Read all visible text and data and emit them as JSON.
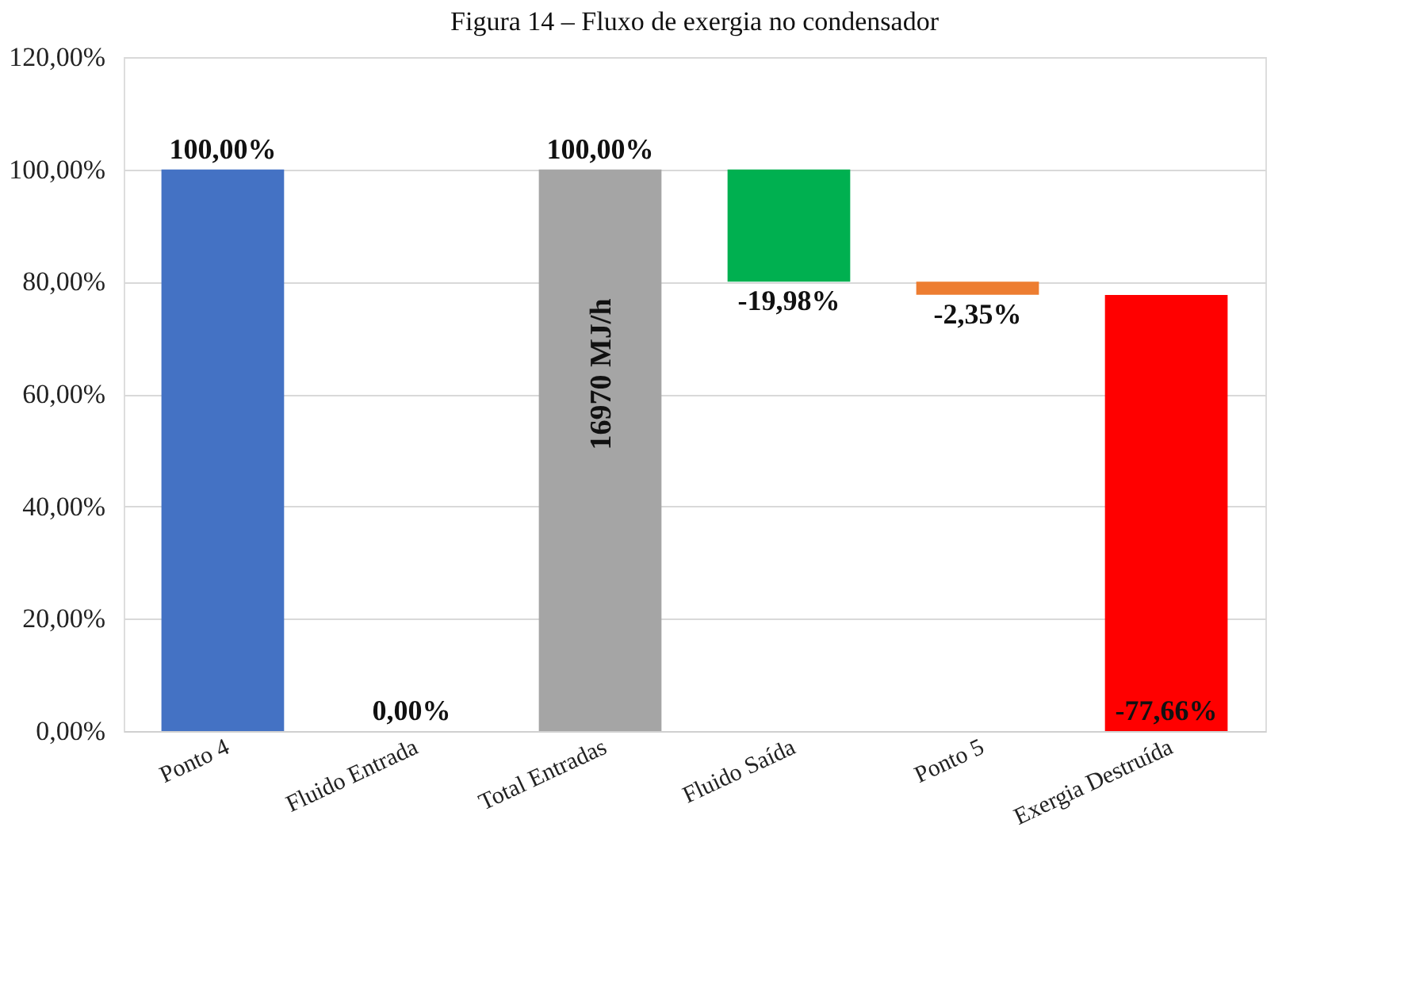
{
  "chart_data": {
    "type": "bar",
    "title": "Figura 14 – Fluxo de exergia no condensador",
    "categories": [
      "Ponto 4",
      "Fluido Entrada",
      "Total Entradas",
      "Fluido Saída",
      "Ponto 5",
      "Exergia Destruída"
    ],
    "values": [
      100,
      0,
      100,
      -19.98,
      -2.35,
      -77.66
    ],
    "base": [
      null,
      null,
      null,
      100,
      80.02,
      77.66
    ],
    "colors": [
      "#4472c4",
      "#d9d9d9",
      "#a5a5a5",
      "#00b050",
      "#ed7d31",
      "#ff0000"
    ],
    "value_labels": [
      "100,00%",
      "0,00%",
      "100,00%",
      "-19,98%",
      "-2,35%",
      "-77,66%"
    ],
    "annotations": [
      "16970 MJ/h"
    ],
    "ylim": [
      0,
      120
    ],
    "yticks": [
      {
        "value": 0,
        "label": "0,00%"
      },
      {
        "value": 20,
        "label": "20,00%"
      },
      {
        "value": 40,
        "label": "40,00%"
      },
      {
        "value": 60,
        "label": "60,00%"
      },
      {
        "value": 80,
        "label": "80,00%"
      },
      {
        "value": 100,
        "label": "100,00%"
      },
      {
        "value": 120,
        "label": "120,00%"
      }
    ],
    "grid": "y"
  }
}
